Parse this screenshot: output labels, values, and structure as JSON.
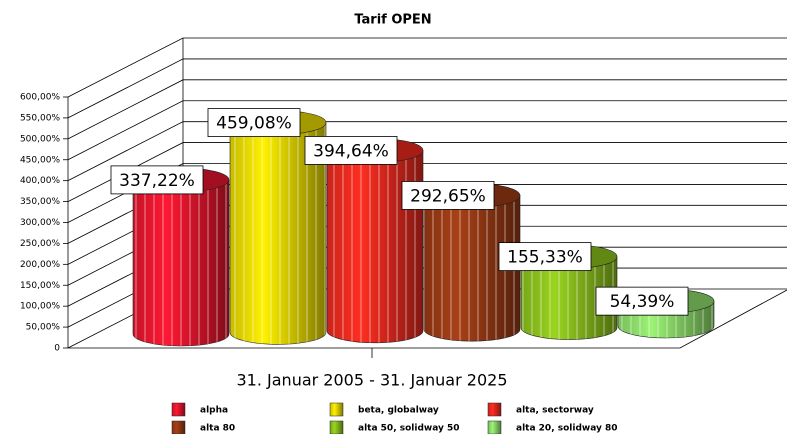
{
  "chart_data": {
    "type": "bar3d",
    "title": "Tarif OPEN",
    "categories": [
      "31. Januar 2005 - 31. Januar 2025"
    ],
    "series": [
      {
        "name": "alpha",
        "color": "#e8162e",
        "values": [
          337.22
        ],
        "value_labels": [
          "337,22%"
        ]
      },
      {
        "name": "beta, globalway",
        "color": "#eadc00",
        "values": [
          459.08
        ],
        "value_labels": [
          "459,08%"
        ]
      },
      {
        "name": "alta, sectorway",
        "color": "#ec2a1e",
        "values": [
          394.64
        ],
        "value_labels": [
          "394,64%"
        ]
      },
      {
        "name": "alta 80",
        "color": "#9a3a14",
        "values": [
          292.65
        ],
        "value_labels": [
          "292,65%"
        ]
      },
      {
        "name": "alta 50, solidway 50",
        "color": "#8cc21c",
        "values": [
          155.33
        ],
        "value_labels": [
          "155,33%"
        ]
      },
      {
        "name": "alta 20, solidway 80",
        "color": "#8ede6a",
        "values": [
          54.39
        ],
        "value_labels": [
          "54,39%"
        ]
      }
    ],
    "ylim": [
      0,
      600
    ],
    "yticks": [
      0,
      {
        "value": 50,
        "label": "50,00%"
      },
      {
        "value": 100,
        "label": "100,00%"
      },
      {
        "value": 150,
        "label": "150,00%"
      },
      {
        "value": 200,
        "label": "200,00%"
      },
      {
        "value": 250,
        "label": "250,00%"
      },
      {
        "value": 300,
        "label": "300,00%"
      },
      {
        "value": 350,
        "label": "350,00%"
      },
      {
        "value": 400,
        "label": "400,00%"
      },
      {
        "value": 450,
        "label": "450,00%"
      },
      {
        "value": 500,
        "label": "500,00%"
      },
      {
        "value": 550,
        "label": "550,00%"
      },
      {
        "value": 600,
        "label": "600,00%"
      }
    ],
    "grid": true
  }
}
